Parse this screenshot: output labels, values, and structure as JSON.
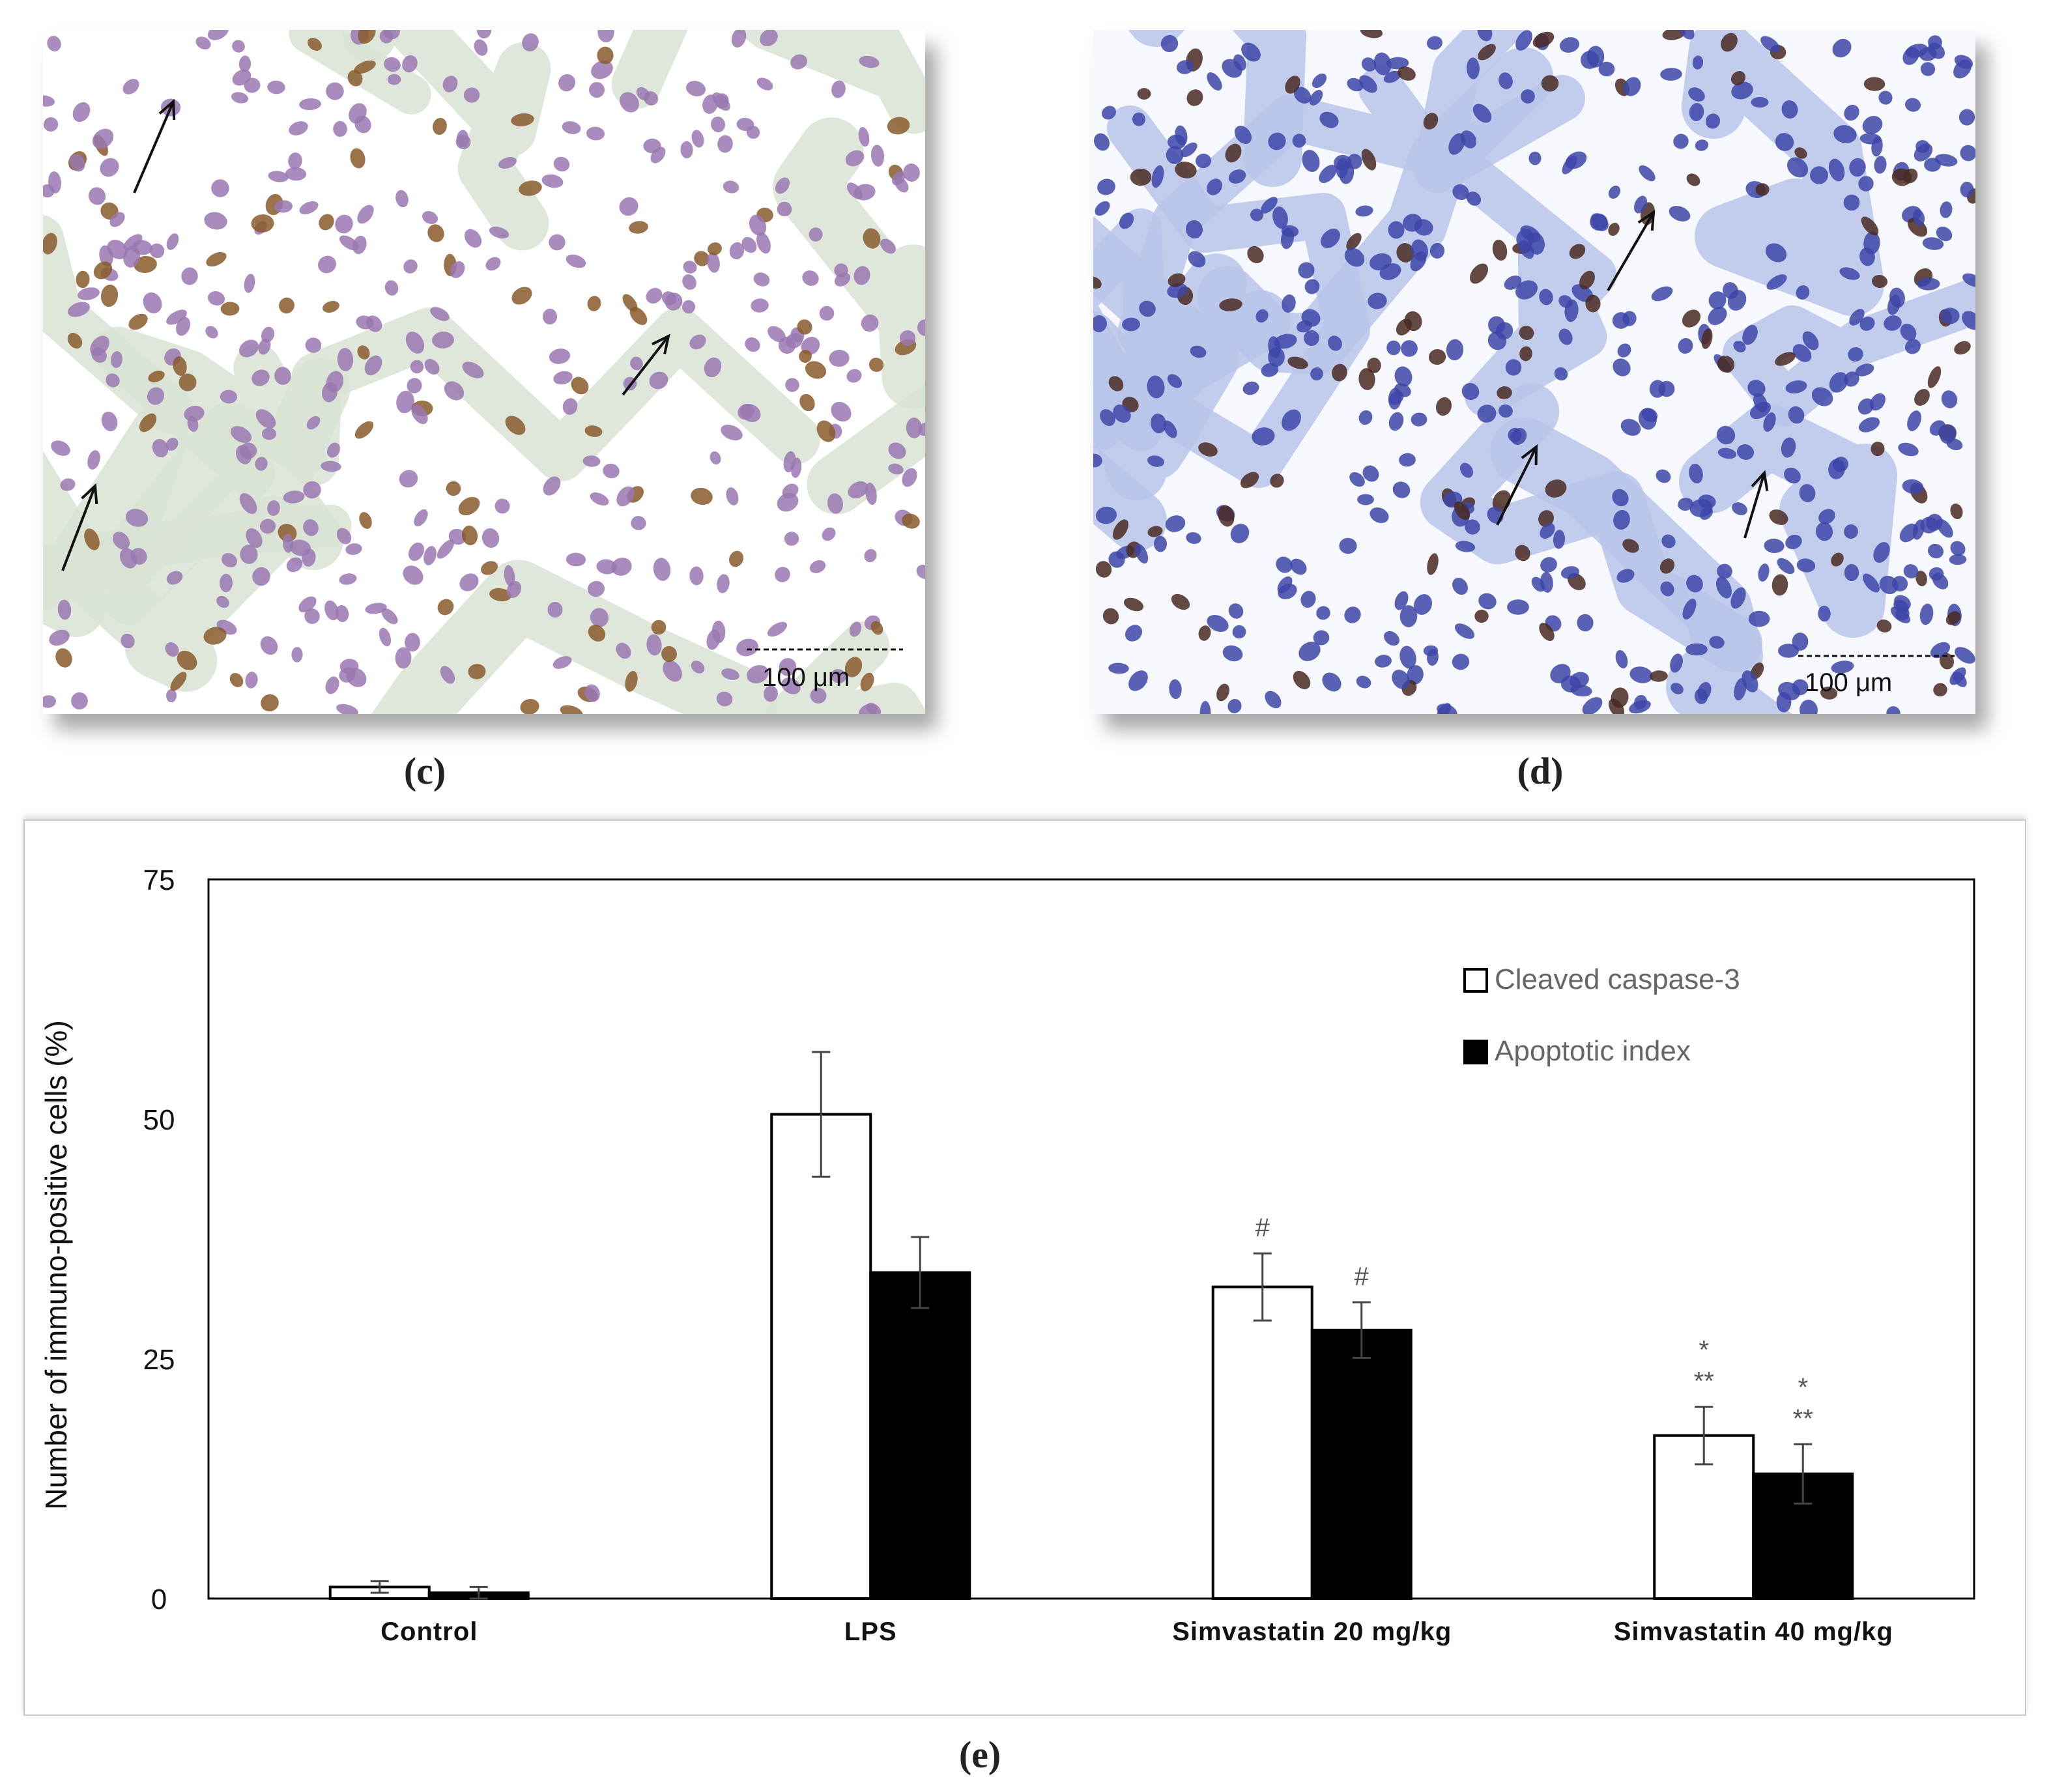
{
  "panels": {
    "c": {
      "label": "(c)",
      "scale_text": "100 μm"
    },
    "d": {
      "label": "(d)",
      "scale_text": "100 μm"
    },
    "e": {
      "label": "(e)"
    }
  },
  "colors": {
    "series_open": "#ffffff",
    "series_filled": "#000000",
    "tissue_c_bg": "#ffffff",
    "tissue_c_stroma": "#d9e3d4",
    "tissue_c_nucleus": "#9a78b2",
    "tissue_c_positive": "#8a5a2b",
    "tissue_d_stroma": "#b9c6ea",
    "tissue_d_nucleus": "#3d46a8",
    "tissue_d_positive": "#4a2a22"
  },
  "chart_data": {
    "type": "bar",
    "categories": [
      "Control",
      "LPS",
      "Simvastatin 20 mg/kg",
      "Simvastatin 40 mg/kg"
    ],
    "ylabel": "Number of immuno-positive cells (%)",
    "xlabel": "",
    "ylim": [
      0,
      75
    ],
    "yticks": [
      0,
      25,
      50,
      75
    ],
    "grid": false,
    "legend_placement": "top-right",
    "series": [
      {
        "name": "Cleaved caspase-3",
        "fill": "open",
        "values": [
          1.2,
          50.5,
          32.5,
          17
        ],
        "errors": [
          0.6,
          6.5,
          3.5,
          3
        ],
        "annotations": [
          "",
          "",
          "#",
          "*\n**"
        ]
      },
      {
        "name": "Apoptotic index",
        "fill": "filled",
        "values": [
          0.6,
          34,
          28,
          13
        ],
        "errors": [
          0.6,
          3.7,
          2.9,
          3.1
        ],
        "annotations": [
          "",
          "",
          "#",
          "*\n**"
        ]
      }
    ]
  }
}
